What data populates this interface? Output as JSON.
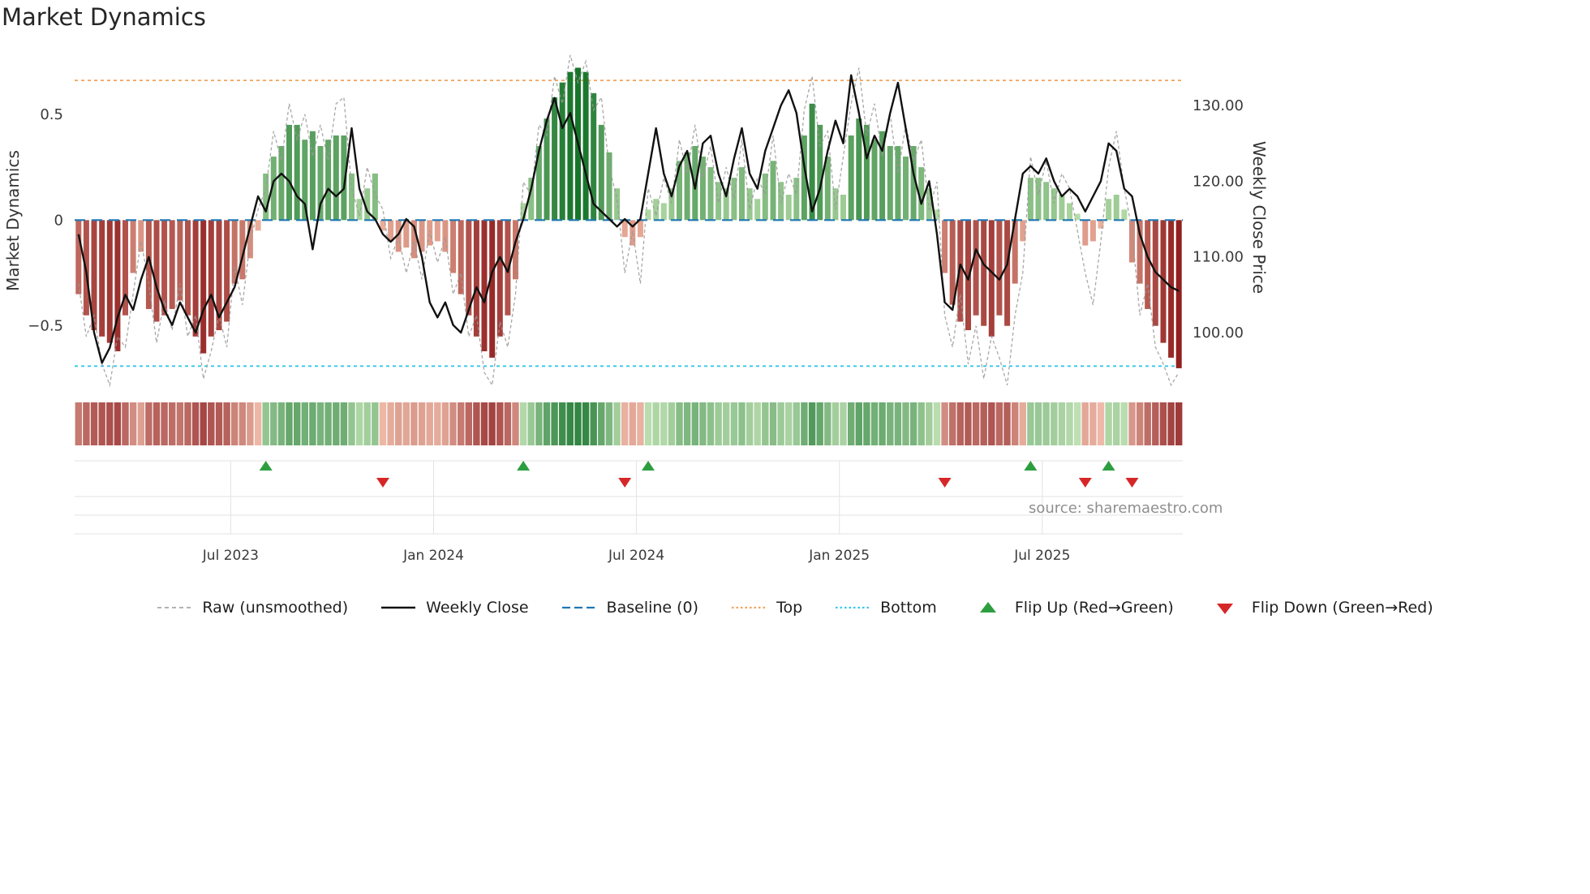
{
  "title": "Market Dynamics",
  "source_credit": "source: sharemaestro.com",
  "axes": {
    "left": {
      "title": "Market Dynamics",
      "tick_labels": [
        "0.5",
        "0",
        "−0.5"
      ],
      "tick_values": [
        0.5,
        0,
        -0.5
      ]
    },
    "right": {
      "title": "Weekly Close Price",
      "tick_labels": [
        "130.00",
        "120.00",
        "110.00",
        "100.00"
      ],
      "tick_values": [
        130,
        120,
        110,
        100
      ]
    },
    "x": {
      "tick_labels": [
        "Jul 2023",
        "Jan 2024",
        "Jul 2024",
        "Jan 2025",
        "Jul 2025"
      ],
      "tick_week_index": [
        20,
        46,
        72,
        98,
        124
      ]
    }
  },
  "chart_data": {
    "type": "combo",
    "x_unit": "week_index",
    "x_range_note": "weekly points, ~Feb 2023 to ~Nov 2025",
    "n_points": 142,
    "left_ylim": [
      -0.8,
      0.81
    ],
    "right_ylim": [
      92.5,
      137.5
    ],
    "grid": "off",
    "legend_position": "bottom",
    "reference_lines": {
      "baseline": 0,
      "top": 0.66,
      "bottom": -0.69
    },
    "flip_up_week_index": [
      24,
      57,
      73,
      122,
      132
    ],
    "flip_down_week_index": [
      39,
      70,
      111,
      129,
      135
    ],
    "heatmap_strip": "cell colors follow bar values (red negative, green positive)",
    "series": [
      {
        "name": "Momentum bars",
        "type": "bar",
        "axis": "left",
        "values": [
          -0.35,
          -0.45,
          -0.52,
          -0.55,
          -0.58,
          -0.62,
          -0.45,
          -0.25,
          -0.15,
          -0.42,
          -0.48,
          -0.45,
          -0.42,
          -0.38,
          -0.45,
          -0.55,
          -0.63,
          -0.55,
          -0.52,
          -0.48,
          -0.3,
          -0.28,
          -0.18,
          -0.05,
          0.22,
          0.3,
          0.35,
          0.45,
          0.45,
          0.38,
          0.42,
          0.35,
          0.38,
          0.4,
          0.4,
          0.22,
          0.1,
          0.15,
          0.22,
          -0.05,
          -0.1,
          -0.15,
          -0.13,
          -0.18,
          -0.15,
          -0.12,
          -0.1,
          -0.15,
          -0.25,
          -0.35,
          -0.45,
          -0.55,
          -0.62,
          -0.65,
          -0.55,
          -0.45,
          -0.28,
          0.08,
          0.2,
          0.35,
          0.48,
          0.58,
          0.65,
          0.7,
          0.72,
          0.7,
          0.6,
          0.45,
          0.32,
          0.15,
          -0.08,
          -0.12,
          -0.08,
          0.05,
          0.1,
          0.08,
          0.15,
          0.28,
          0.32,
          0.35,
          0.3,
          0.25,
          0.18,
          0.15,
          0.2,
          0.25,
          0.15,
          0.1,
          0.22,
          0.28,
          0.18,
          0.12,
          0.2,
          0.4,
          0.55,
          0.45,
          0.3,
          0.15,
          0.12,
          0.4,
          0.48,
          0.45,
          0.38,
          0.42,
          0.35,
          0.35,
          0.3,
          0.35,
          0.25,
          0.15,
          0.05,
          -0.25,
          -0.4,
          -0.48,
          -0.52,
          -0.45,
          -0.5,
          -0.55,
          -0.45,
          -0.5,
          -0.3,
          -0.1,
          0.2,
          0.2,
          0.18,
          0.15,
          0.12,
          0.08,
          0.03,
          -0.12,
          -0.1,
          -0.04,
          0.1,
          0.12,
          0.05,
          -0.2,
          -0.3,
          -0.42,
          -0.5,
          -0.58,
          -0.65,
          -0.7
        ]
      },
      {
        "name": "Raw (unsmoothed)",
        "type": "line",
        "style": "dashed",
        "axis": "left",
        "values": [
          -0.3,
          -0.55,
          -0.45,
          -0.68,
          -0.78,
          -0.55,
          -0.6,
          -0.35,
          -0.1,
          -0.3,
          -0.58,
          -0.38,
          -0.52,
          -0.3,
          -0.55,
          -0.45,
          -0.75,
          -0.62,
          -0.45,
          -0.6,
          -0.22,
          -0.4,
          -0.1,
          0.05,
          0.15,
          0.42,
          0.28,
          0.55,
          0.38,
          0.5,
          0.3,
          0.45,
          0.28,
          0.55,
          0.58,
          0.15,
          0.02,
          0.25,
          0.12,
          0.05,
          -0.18,
          -0.08,
          -0.25,
          -0.1,
          -0.28,
          -0.05,
          -0.2,
          -0.08,
          -0.35,
          -0.25,
          -0.55,
          -0.45,
          -0.72,
          -0.78,
          -0.48,
          -0.6,
          -0.35,
          0.18,
          0.12,
          0.45,
          0.4,
          0.68,
          0.55,
          0.78,
          0.65,
          0.75,
          0.52,
          0.58,
          0.25,
          0.1,
          -0.25,
          -0.05,
          -0.3,
          0.15,
          0.02,
          0.2,
          0.08,
          0.38,
          0.22,
          0.45,
          0.2,
          0.35,
          0.08,
          0.25,
          0.1,
          0.38,
          0.05,
          0.2,
          0.12,
          0.4,
          0.08,
          0.22,
          0.12,
          0.52,
          0.68,
          0.35,
          0.42,
          0.05,
          0.3,
          0.55,
          0.72,
          0.4,
          0.55,
          0.3,
          0.5,
          0.22,
          0.45,
          0.28,
          0.38,
          0.05,
          0.18,
          -0.45,
          -0.6,
          -0.35,
          -0.68,
          -0.5,
          -0.75,
          -0.55,
          -0.65,
          -0.78,
          -0.45,
          -0.25,
          0.3,
          0.12,
          0.28,
          0.08,
          0.22,
          0.15,
          -0.05,
          -0.25,
          -0.4,
          -0.1,
          0.25,
          0.42,
          0.15,
          -0.05,
          -0.45,
          -0.3,
          -0.6,
          -0.68,
          -0.78,
          -0.72
        ]
      },
      {
        "name": "Weekly Close",
        "type": "line",
        "axis": "right",
        "values": [
          113,
          108,
          100,
          96,
          98,
          102,
          105,
          103,
          107,
          110,
          106,
          103,
          101,
          104,
          102,
          100,
          103,
          105,
          102,
          104,
          106,
          110,
          114,
          118,
          116,
          120,
          121,
          120,
          118,
          117,
          111,
          117,
          119,
          118,
          119,
          127,
          119,
          116,
          115,
          113,
          112,
          113,
          115,
          114,
          110,
          104,
          102,
          104,
          101,
          100,
          103,
          106,
          104,
          108,
          110,
          108,
          112,
          115,
          119,
          124,
          128,
          131,
          127,
          129,
          125,
          121,
          117,
          116,
          115,
          114,
          115,
          114,
          115,
          121,
          127,
          121,
          118,
          122,
          124,
          119,
          125,
          126,
          121,
          118,
          123,
          127,
          121,
          119,
          124,
          127,
          130,
          132,
          129,
          122,
          116,
          119,
          124,
          128,
          125,
          134,
          129,
          123,
          126,
          124,
          129,
          133,
          127,
          121,
          117,
          120,
          113,
          104,
          103,
          109,
          107,
          111,
          109,
          108,
          107,
          109,
          115,
          121,
          122,
          121,
          123,
          120,
          118,
          119,
          118,
          116,
          118,
          120,
          125,
          124,
          119,
          118,
          113,
          110,
          108,
          107,
          106,
          105.5
        ]
      }
    ]
  },
  "legend": {
    "items": [
      {
        "label": "Raw (unsmoothed)",
        "swatch": "dashed-line",
        "color": "#999999"
      },
      {
        "label": "Weekly Close",
        "swatch": "solid-line",
        "color": "#111111"
      },
      {
        "label": "Baseline (0)",
        "swatch": "long-dash-line",
        "color": "#1f77b4"
      },
      {
        "label": "Top",
        "swatch": "dotted-line",
        "color": "#f0a35e"
      },
      {
        "label": "Bottom",
        "swatch": "dotted-line",
        "color": "#35c8e8"
      },
      {
        "label": "Flip Up (Red→Green)",
        "swatch": "triangle-up",
        "color": "#2d9e3f"
      },
      {
        "label": "Flip Down (Green→Red)",
        "swatch": "triangle-down",
        "color": "#d62728"
      }
    ]
  },
  "colors": {
    "baseline": "#1f77b4",
    "top": "#f0a35e",
    "bottom": "#35c8e8",
    "close_line": "#111111",
    "raw_line": "#999999",
    "flip_up": "#2d9e3f",
    "flip_down": "#d62728",
    "bar_pos_light": "#bfe2b0",
    "bar_pos_dark": "#17752a",
    "bar_neg_light": "#f3bca6",
    "bar_neg_dark": "#8e1c1c",
    "tick_text": "#3a3a3a",
    "band_grid": "#e3e3e3"
  }
}
